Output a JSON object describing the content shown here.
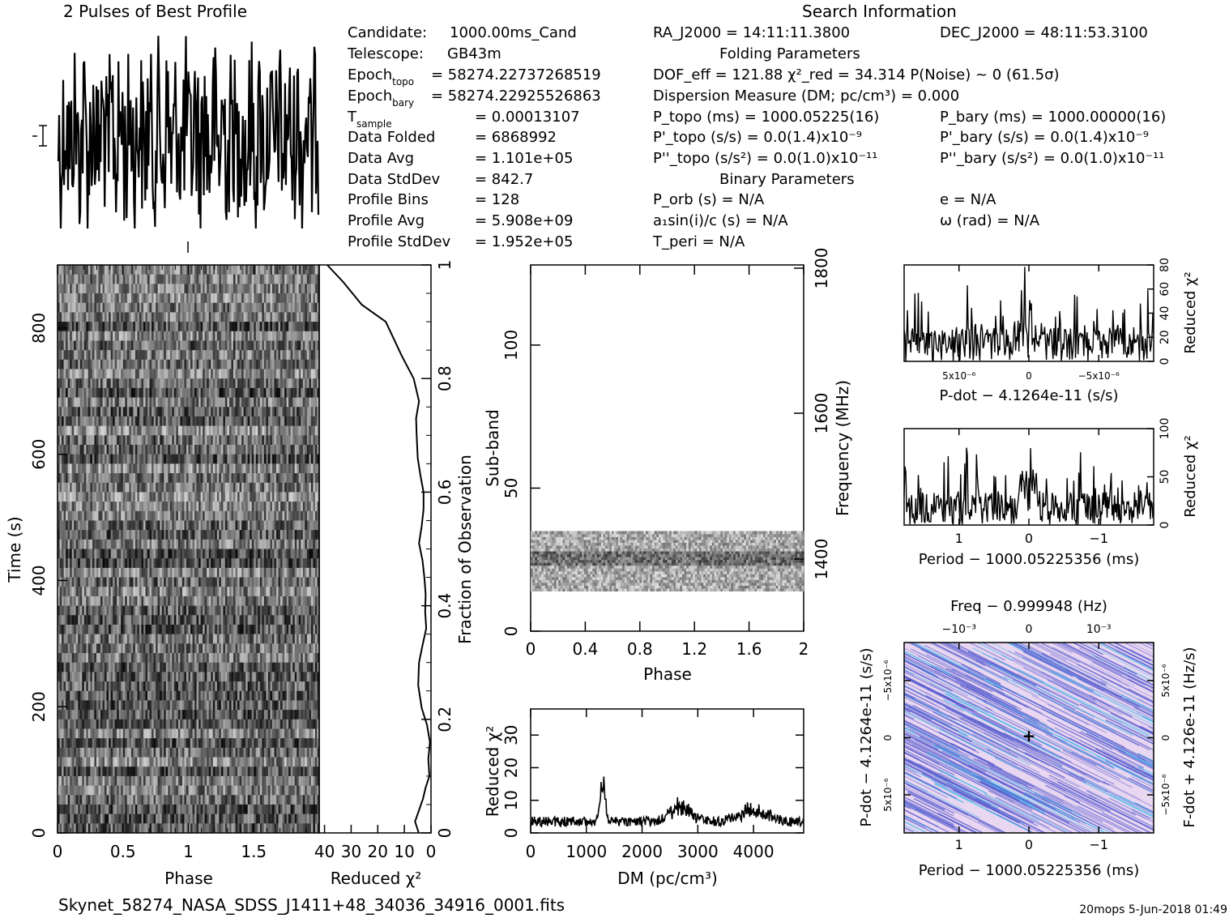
{
  "titles": {
    "profile": "2 Pulses of Best Profile",
    "search": "Search Information",
    "folding": "Folding Parameters",
    "binary": "Binary Parameters"
  },
  "info_left": [
    {
      "label": "Candidate:",
      "value": "1000.00ms_Cand"
    },
    {
      "label": "Telescope:",
      "value": "GB43m"
    },
    {
      "label": "Epoch",
      "sub": "topo",
      "value": "= 58274.22737268519"
    },
    {
      "label": "Epoch",
      "sub": "bary",
      "value": "= 58274.22925526863"
    },
    {
      "label": "T",
      "sub": "sample",
      "value": "=   0.00013107"
    },
    {
      "label": "Data Folded",
      "value": "=   6868992"
    },
    {
      "label": "Data Avg",
      "value": "=   1.101e+05"
    },
    {
      "label": "Data StdDev",
      "value": "=   842.7"
    },
    {
      "label": "Profile Bins",
      "value": "=   128"
    },
    {
      "label": "Profile Avg",
      "value": "=   5.908e+09"
    },
    {
      "label": "Profile StdDev",
      "value": "=   1.952e+05"
    }
  ],
  "search": {
    "ra": "RA_J2000 = 14:11:11.3800",
    "dec": "DEC_J2000 = 48:11:53.3100",
    "dof": "DOF_eff = 121.88   χ²_red = 34.314   P(Noise) ~ 0    (61.5σ)",
    "dm": "Dispersion Measure (DM; pc/cm³) = 0.000",
    "p_topo": "P_topo (ms) =  1000.05225(16)",
    "p_bary": "P_bary (ms) =  1000.00000(16)",
    "pd_topo": "P'_topo (s/s) = 0.0(1.4)x10⁻⁹",
    "pd_bary": "P'_bary (s/s) = 0.0(1.4)x10⁻⁹",
    "pdd_topo": "P''_topo (s/s²) = 0.0(1.0)x10⁻¹¹",
    "pdd_bary": "P''_bary (s/s²) = 0.0(1.0)x10⁻¹¹",
    "porb": "P_orb (s) = N/A",
    "e": "e = N/A",
    "a1": "a₁sin(i)/c (s) = N/A",
    "omega": "ω (rad) = N/A",
    "tperi": "T_peri = N/A"
  },
  "footer": {
    "filename": "Skynet_58274_NASA_SDSS_J1411+48_34036_34916_0001.fits",
    "stamp": "20mops  5-Jun-2018 01:49"
  },
  "chart_data": [
    {
      "id": "profile",
      "type": "line",
      "title": "2 Pulses of Best Profile",
      "xlim": [
        0,
        2
      ],
      "description_values": "noise-dominated profile, no axis labels"
    },
    {
      "id": "time-phase",
      "type": "heatmap",
      "xlabel": "Phase",
      "ylabel": "Time (s)",
      "xlim": [
        0,
        2
      ],
      "ylim": [
        0,
        900
      ],
      "xticks": [
        "0",
        "0.5",
        "1",
        "1.5"
      ],
      "yticks": [
        "0",
        "200",
        "400",
        "600",
        "800"
      ]
    },
    {
      "id": "time-chi2",
      "type": "line",
      "xlabel": "Reduced χ²",
      "ylabel_right": "Fraction of Observation",
      "xticks": [
        "40",
        "30",
        "20",
        "10",
        "0"
      ],
      "yticks_right": [
        "0",
        "0.2",
        "0.4",
        "0.6",
        "0.8",
        "1"
      ],
      "x": [
        4.6,
        6.0,
        4.5,
        3.0,
        2.0,
        0.6,
        1.0,
        0.4,
        1.5,
        3.5,
        4.8,
        4.5,
        3.2,
        1.8,
        2.2,
        2.0,
        2.5,
        3.2,
        4.5,
        3.5,
        2.8,
        2.8,
        4.0,
        5.0,
        5.4,
        5.6,
        4.5,
        6.5,
        11.0,
        14.0,
        17.0,
        26.0,
        33.0,
        39.0
      ],
      "y": [
        0.0,
        0.02,
        0.04,
        0.06,
        0.08,
        0.1,
        0.13,
        0.16,
        0.19,
        0.22,
        0.26,
        0.3,
        0.33,
        0.36,
        0.39,
        0.42,
        0.45,
        0.48,
        0.51,
        0.54,
        0.57,
        0.6,
        0.63,
        0.66,
        0.7,
        0.73,
        0.76,
        0.8,
        0.84,
        0.87,
        0.9,
        0.93,
        0.97,
        1.0
      ]
    },
    {
      "id": "subband-phase",
      "type": "heatmap",
      "xlabel": "Phase",
      "ylabel": "Sub-band",
      "ylabel_right": "Frequency (MHz)",
      "xticks": [
        "0",
        "0.4",
        "0.8",
        "1.2",
        "1.6",
        "2"
      ],
      "yticks": [
        "0",
        "50",
        "100"
      ],
      "yticks_right": [
        "1400",
        "1600",
        "1800"
      ],
      "active_subbands": [
        14,
        35
      ]
    },
    {
      "id": "dm-chi2",
      "type": "line",
      "xlabel": "DM (pc/cm³)",
      "ylabel": "Reduced χ²",
      "xlim": [
        0,
        4900
      ],
      "ylim": [
        0,
        38
      ],
      "xticks": [
        "0",
        "1000",
        "2000",
        "3000",
        "4000"
      ],
      "yticks": [
        "0",
        "10",
        "20",
        "30"
      ],
      "peaks": [
        {
          "x": 1300,
          "y": 18
        },
        {
          "x": 2700,
          "y": 9
        },
        {
          "x": 4000,
          "y": 7
        }
      ]
    },
    {
      "id": "pdot-chi2",
      "type": "line",
      "xlabel": "P-dot − 4.1264e-11 (s/s)",
      "ylabel_right": "Reduced χ²",
      "xticks": [
        "5x10⁻⁶",
        "0",
        "−5x10⁻⁶"
      ],
      "yticks_right": [
        "0",
        "20",
        "40",
        "60",
        "80"
      ],
      "ylim": [
        0,
        80
      ]
    },
    {
      "id": "period-chi2",
      "type": "line",
      "xlabel": "Period − 1000.05225356 (ms)",
      "ylabel_right": "Reduced χ²",
      "xticks": [
        "1",
        "0",
        "−1"
      ],
      "yticks_right": [
        "0",
        "50",
        "100"
      ],
      "ylim": [
        0,
        100
      ]
    },
    {
      "id": "period-pdot",
      "type": "heatmap",
      "title": "Freq − 0.999948 (Hz)",
      "xlabel": "Period − 1000.05225356 (ms)",
      "ylabel": "P-dot − 4.1264e-11 (s/s)",
      "ylabel_right": "F-dot + 4.126e-11 (Hz/s)",
      "xticks": [
        "1",
        "0",
        "−1"
      ],
      "xticks_top": [
        "−10⁻³",
        "0",
        "10⁻³"
      ],
      "yticks": [
        "−5x10⁻⁶",
        "0",
        "5x10⁻⁶"
      ],
      "yticks_right": [
        "5x10⁻⁶",
        "0",
        "−5x10⁻⁶"
      ],
      "colors": {
        "bg": "#e9d6f0",
        "mid": "#5a5fd0",
        "high": "#35b8e8"
      }
    }
  ]
}
